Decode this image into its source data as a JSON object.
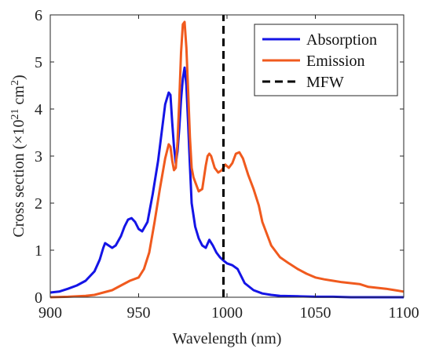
{
  "chart_data": {
    "type": "line",
    "xlabel": "Wavelength (nm)",
    "ylabel": {
      "main": "Cross section (×10",
      "exp1": "21",
      "mid": " cm",
      "exp2": "2",
      "end": ")"
    },
    "xlim": [
      900,
      1100
    ],
    "ylim": [
      0,
      6
    ],
    "xticks": [
      "900",
      "950",
      "1000",
      "1050",
      "1100"
    ],
    "yticks": [
      "0",
      "1",
      "2",
      "3",
      "4",
      "5",
      "6"
    ],
    "grid": false,
    "legend_position": "top-right",
    "series": [
      {
        "name": "Absorption",
        "color": "#1414e6",
        "style": "solid",
        "x": [
          900,
          905,
          910,
          915,
          920,
          925,
          928,
          930,
          931,
          933,
          935,
          937,
          940,
          942,
          944,
          946,
          948,
          950,
          952,
          955,
          958,
          961,
          963,
          965,
          967,
          968,
          969,
          970,
          971,
          972,
          973,
          974,
          975,
          976,
          977,
          978,
          979,
          980,
          982,
          984,
          986,
          988,
          990,
          992,
          994,
          996,
          998,
          1000,
          1003,
          1006,
          1008,
          1010,
          1015,
          1020,
          1025,
          1030,
          1040,
          1050,
          1060,
          1070,
          1080,
          1090,
          1100
        ],
        "y": [
          0.1,
          0.12,
          0.18,
          0.25,
          0.35,
          0.55,
          0.8,
          1.05,
          1.15,
          1.1,
          1.05,
          1.1,
          1.3,
          1.5,
          1.65,
          1.68,
          1.6,
          1.45,
          1.4,
          1.6,
          2.2,
          2.9,
          3.5,
          4.1,
          4.35,
          4.3,
          3.7,
          3.2,
          2.85,
          3.1,
          3.6,
          4.2,
          4.65,
          4.88,
          4.5,
          3.7,
          2.8,
          2.0,
          1.5,
          1.25,
          1.1,
          1.05,
          1.22,
          1.1,
          0.95,
          0.85,
          0.78,
          0.72,
          0.68,
          0.6,
          0.45,
          0.3,
          0.15,
          0.08,
          0.05,
          0.03,
          0.02,
          0.01,
          0.01,
          0.0,
          0.0,
          0.0,
          0.0
        ]
      },
      {
        "name": "Emission",
        "color": "#f05a1e",
        "style": "solid",
        "x": [
          900,
          910,
          920,
          925,
          930,
          935,
          940,
          945,
          950,
          953,
          956,
          959,
          962,
          965,
          967,
          968,
          969,
          970,
          971,
          972,
          973,
          974,
          975,
          976,
          977,
          978,
          979,
          980,
          981,
          982,
          984,
          986,
          988,
          989,
          990,
          991,
          993,
          995,
          997,
          999,
          1001,
          1003,
          1005,
          1007,
          1009,
          1012,
          1015,
          1018,
          1020,
          1025,
          1030,
          1035,
          1040,
          1045,
          1050,
          1055,
          1060,
          1065,
          1070,
          1075,
          1080,
          1085,
          1090,
          1095,
          1100
        ],
        "y": [
          0.0,
          0.01,
          0.03,
          0.05,
          0.1,
          0.15,
          0.25,
          0.35,
          0.42,
          0.6,
          0.95,
          1.6,
          2.3,
          2.95,
          3.25,
          3.2,
          2.9,
          2.7,
          2.75,
          3.3,
          4.2,
          5.2,
          5.8,
          5.85,
          5.3,
          4.4,
          3.4,
          2.75,
          2.55,
          2.45,
          2.25,
          2.3,
          2.8,
          3.0,
          3.05,
          3.0,
          2.75,
          2.65,
          2.7,
          2.82,
          2.75,
          2.85,
          3.05,
          3.08,
          2.95,
          2.6,
          2.3,
          1.95,
          1.6,
          1.1,
          0.85,
          0.72,
          0.6,
          0.5,
          0.42,
          0.38,
          0.35,
          0.32,
          0.3,
          0.28,
          0.22,
          0.2,
          0.18,
          0.15,
          0.12
        ]
      },
      {
        "name": "MFW",
        "color": "#000000",
        "style": "dashed",
        "x": [
          998,
          998
        ],
        "y": [
          0,
          6
        ]
      }
    ]
  }
}
